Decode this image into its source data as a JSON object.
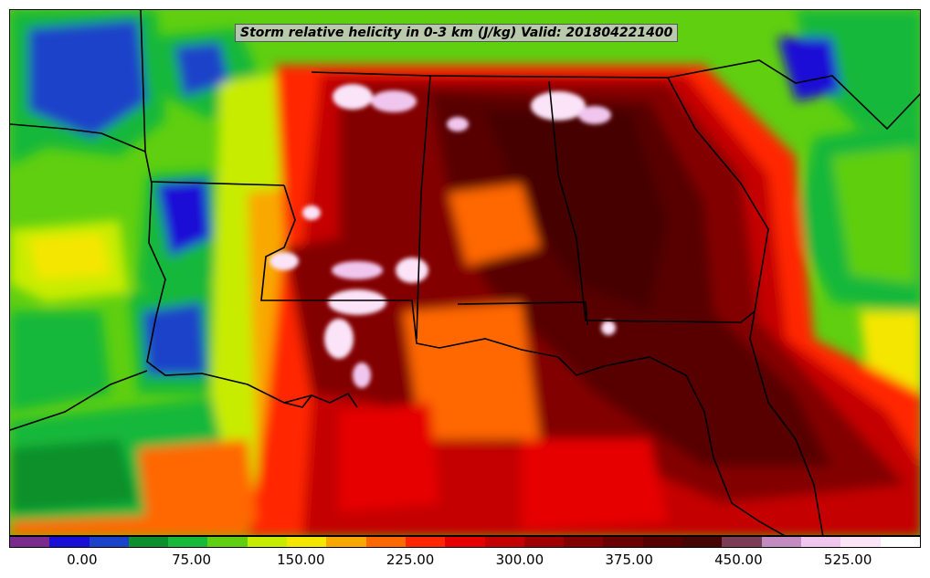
{
  "title": "Storm relative helicity in 0-3 km (J/kg) Valid: 201804221400",
  "colorbar": {
    "colors": [
      "#7a2b8e",
      "#1a0fd6",
      "#1a43c9",
      "#0c8f2c",
      "#18b83a",
      "#5fcf10",
      "#c8ec00",
      "#f5e600",
      "#f9a800",
      "#ff6800",
      "#ff2600",
      "#e60000",
      "#c40000",
      "#a00000",
      "#830000",
      "#6a0000",
      "#580000",
      "#470404",
      "#7a3d55",
      "#c48ac2",
      "#f1c6ee",
      "#fbe3f8",
      "#ffffff"
    ],
    "tick_labels": [
      "0.00",
      "75.00",
      "150.00",
      "225.00",
      "300.00",
      "375.00",
      "450.00",
      "525.00"
    ],
    "tick_values": [
      0,
      75,
      150,
      225,
      300,
      375,
      450,
      525
    ],
    "min": -50,
    "max": 575
  }
}
